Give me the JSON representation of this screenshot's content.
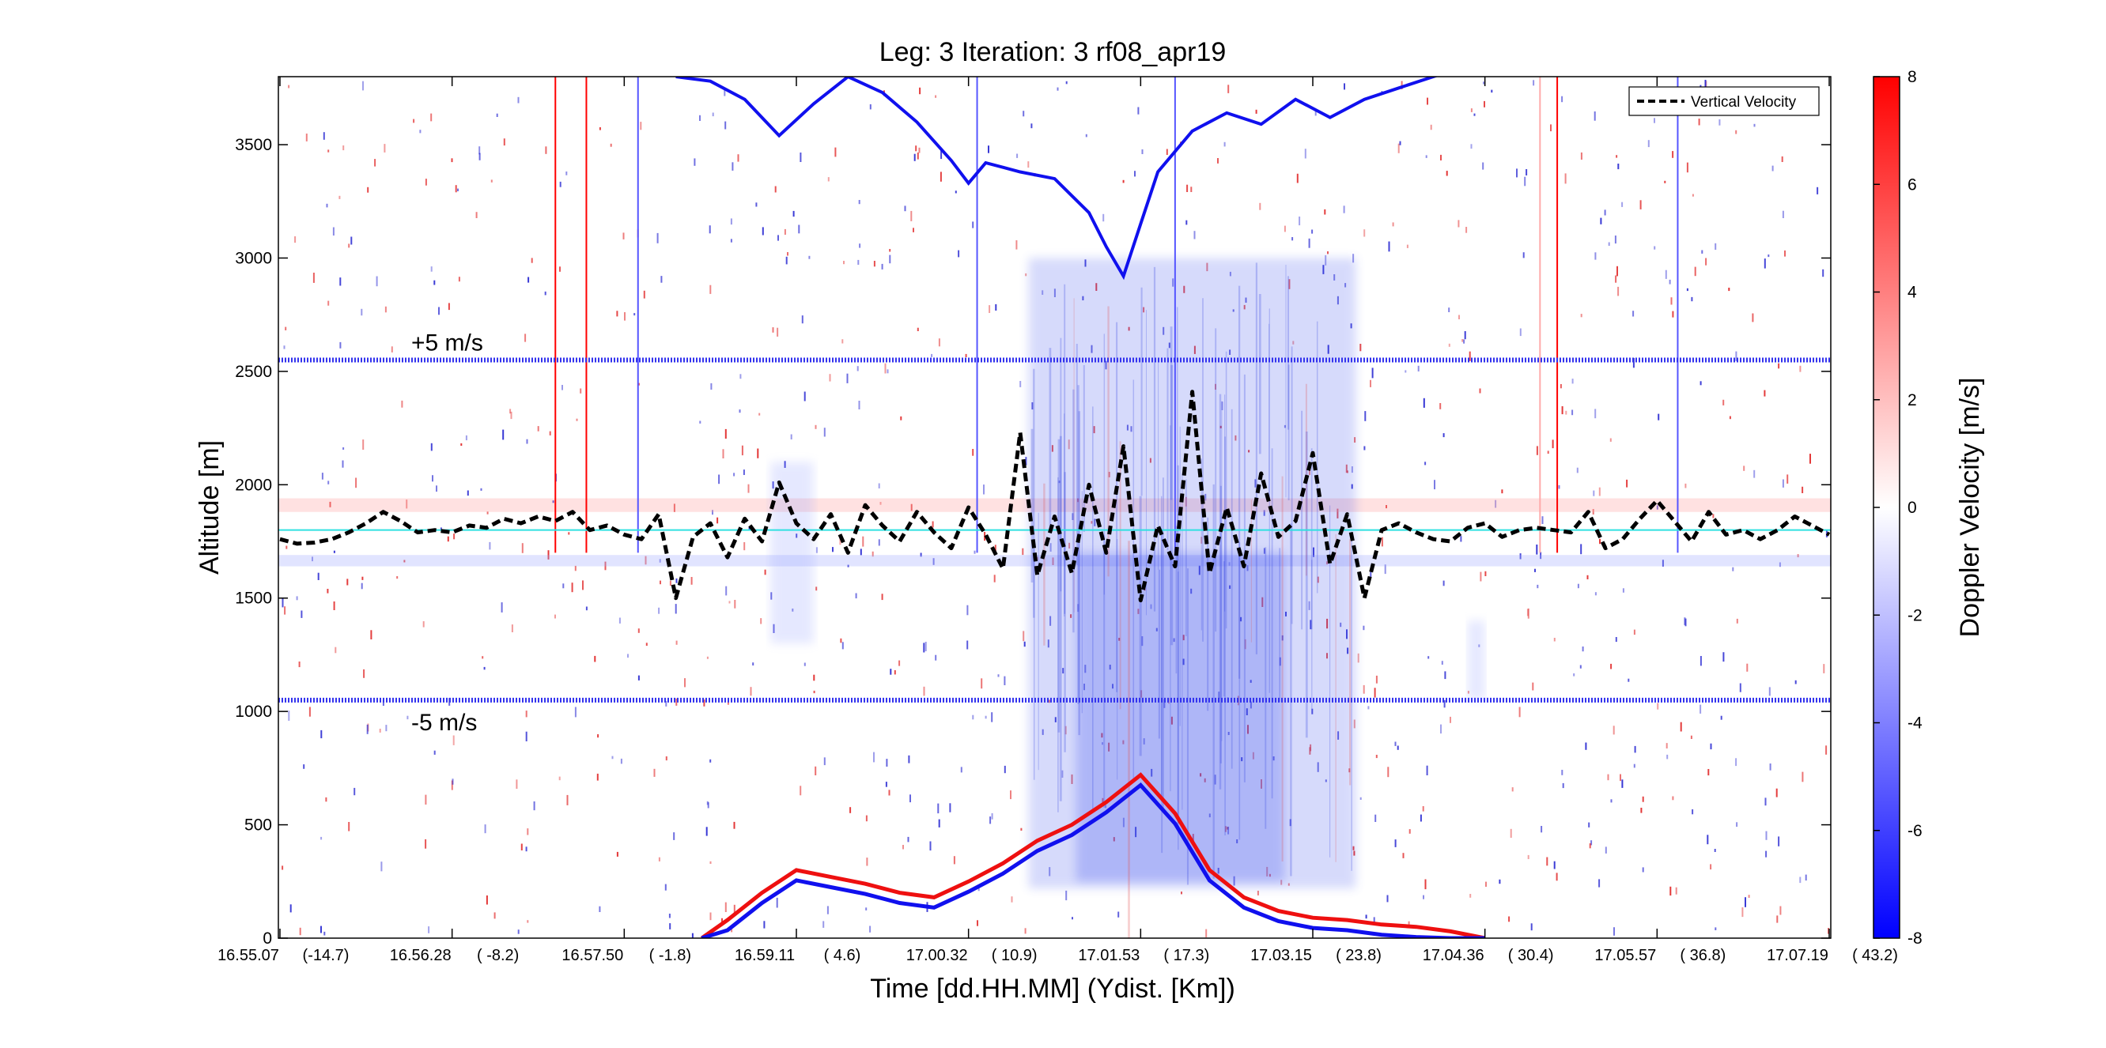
{
  "chart_data": {
    "type": "heatmap",
    "title": "Leg: 3  Iteration: 3  rf08_apr19",
    "xlabel": "Time [dd.HH.MM]    (Ydist. [Km])",
    "ylabel": "Altitude [m]",
    "colorbar_label": "Doppler Velocity [m/s]",
    "colorbar_ticks": [
      "8",
      "6",
      "4",
      "2",
      "0",
      "-2",
      "-4",
      "-6",
      "-8"
    ],
    "colorbar_range": [
      -8,
      8
    ],
    "colormap": {
      "low": "#0000ff",
      "mid": "#ffffff",
      "high": "#ff0000"
    },
    "ylim": [
      0,
      3800
    ],
    "y_ticks": [
      "0",
      "500",
      "1000",
      "1500",
      "2000",
      "2500",
      "3000",
      "3500"
    ],
    "x_ticks": [
      {
        "time": "16.55.07",
        "ydist": "(-14.7)"
      },
      {
        "time": "16.56.28",
        "ydist": "( -8.2)"
      },
      {
        "time": "16.57.50",
        "ydist": "( -1.8)"
      },
      {
        "time": "16.59.11",
        "ydist": "(  4.6)"
      },
      {
        "time": "17.00.32",
        "ydist": "( 10.9)"
      },
      {
        "time": "17.01.53",
        "ydist": "( 17.3)"
      },
      {
        "time": "17.03.15",
        "ydist": "( 23.8)"
      },
      {
        "time": "17.04.36",
        "ydist": "( 30.4)"
      },
      {
        "time": "17.05.57",
        "ydist": "( 36.8)"
      },
      {
        "time": "17.07.19",
        "ydist": "( 43.2)"
      }
    ],
    "legend": {
      "label": "Vertical Velocity",
      "placement": "top-right"
    },
    "reference_lines": [
      {
        "label": "+5 m/s",
        "altitude": 2550,
        "color": "#3333ee"
      },
      {
        "label": "-5 m/s",
        "altitude": 1050,
        "color": "#3333ee"
      }
    ],
    "aircraft_level_altitude": 1800,
    "aircraft_level_color": "#30e0e0",
    "vertical_velocity_baseline_altitude": 1800,
    "series": [
      {
        "name": "Vertical Velocity",
        "style": "dashed",
        "color": "#000000",
        "x": [
          0.0,
          0.1,
          0.2,
          0.3,
          0.4,
          0.5,
          0.6,
          0.7,
          0.8,
          0.9,
          1.0,
          1.1,
          1.2,
          1.3,
          1.4,
          1.5,
          1.6,
          1.7,
          1.8,
          1.9,
          2.0,
          2.1,
          2.2,
          2.3,
          2.4,
          2.5,
          2.6,
          2.7,
          2.8,
          2.9,
          3.0,
          3.1,
          3.2,
          3.3,
          3.4,
          3.5,
          3.6,
          3.7,
          3.8,
          3.9,
          4.0,
          4.1,
          4.2,
          4.3,
          4.4,
          4.5,
          4.6,
          4.7,
          4.8,
          4.9,
          5.0,
          5.1,
          5.2,
          5.3,
          5.4,
          5.5,
          5.6,
          5.7,
          5.8,
          5.9,
          6.0,
          6.1,
          6.2,
          6.3,
          6.4,
          6.5,
          6.6,
          6.7,
          6.8,
          6.9,
          7.0,
          7.1,
          7.2,
          7.3,
          7.4,
          7.5,
          7.6,
          7.7,
          7.8,
          7.9,
          8.0,
          8.1,
          8.2,
          8.3,
          8.4,
          8.5,
          8.6,
          8.7,
          8.8,
          8.9,
          9.0
        ],
        "y": [
          1760,
          1740,
          1745,
          1760,
          1790,
          1830,
          1880,
          1840,
          1790,
          1800,
          1790,
          1820,
          1810,
          1850,
          1830,
          1860,
          1840,
          1880,
          1800,
          1820,
          1780,
          1760,
          1870,
          1500,
          1770,
          1830,
          1680,
          1850,
          1750,
          2010,
          1830,
          1760,
          1870,
          1700,
          1910,
          1820,
          1750,
          1880,
          1790,
          1720,
          1900,
          1780,
          1630,
          2230,
          1600,
          1860,
          1610,
          2000,
          1700,
          2170,
          1490,
          1820,
          1640,
          2410,
          1610,
          1900,
          1640,
          2050,
          1770,
          1840,
          2140,
          1650,
          1870,
          1500,
          1800,
          1830,
          1790,
          1760,
          1750,
          1810,
          1830,
          1770,
          1800,
          1810,
          1800,
          1790,
          1880,
          1720,
          1760,
          1850,
          1930,
          1840,
          1750,
          1880,
          1780,
          1800,
          1760,
          1800,
          1860,
          1820,
          1780
        ]
      }
    ],
    "colored_verticals": [
      {
        "x": 1.6,
        "color": "#ff0000"
      },
      {
        "x": 1.78,
        "color": "#ff0000"
      },
      {
        "x": 2.08,
        "color": "#5555ff"
      },
      {
        "x": 4.05,
        "color": "#5555ff"
      },
      {
        "x": 5.2,
        "color": "#5555ff"
      },
      {
        "x": 7.32,
        "color": "#ffaaaa"
      },
      {
        "x": 7.42,
        "color": "#ff0000"
      },
      {
        "x": 8.12,
        "color": "#5555ff"
      }
    ],
    "upper_echo_trace": {
      "x": [
        2.3,
        2.5,
        2.7,
        2.9,
        3.1,
        3.3,
        3.5,
        3.7,
        3.9,
        4.0,
        4.1,
        4.3,
        4.5,
        4.7,
        4.8,
        4.9,
        5.0,
        5.1,
        5.3,
        5.5,
        5.7,
        5.9,
        6.1,
        6.3,
        6.5,
        6.7,
        6.9
      ],
      "y": [
        3800,
        3780,
        3700,
        3540,
        3680,
        3800,
        3730,
        3600,
        3430,
        3330,
        3420,
        3380,
        3350,
        3200,
        3050,
        2920,
        3150,
        3380,
        3560,
        3640,
        3590,
        3700,
        3620,
        3700,
        3750,
        3800,
        3850
      ]
    },
    "surface_echo_trace": {
      "x": [
        2.45,
        2.6,
        2.8,
        3.0,
        3.2,
        3.4,
        3.6,
        3.8,
        4.0,
        4.2,
        4.4,
        4.6,
        4.8,
        5.0,
        5.2,
        5.4,
        5.6,
        5.8,
        6.0,
        6.2,
        6.4,
        6.6,
        6.8,
        7.0
      ],
      "y": [
        0,
        80,
        200,
        300,
        270,
        240,
        200,
        180,
        250,
        330,
        430,
        500,
        600,
        720,
        550,
        300,
        180,
        120,
        90,
        80,
        60,
        50,
        30,
        0
      ]
    },
    "cloud_regions": [
      {
        "x_start": 4.35,
        "x_end": 6.25,
        "y_bottom": 220,
        "y_top": 3000,
        "color": "#4a5cf0"
      },
      {
        "x_start": 2.85,
        "x_end": 3.1,
        "y_bottom": 1300,
        "y_top": 2100,
        "color": "#9aa6ff"
      },
      {
        "x_start": 6.9,
        "x_end": 7.0,
        "y_bottom": 1050,
        "y_top": 1400,
        "color": "#9aa6ff"
      }
    ],
    "noise_band_upper": {
      "y_bottom": 1880,
      "y_top": 1940,
      "color": "#ff9a9a"
    },
    "noise_band_lower": {
      "y_bottom": 1640,
      "y_top": 1690,
      "color": "#9aa6ff"
    }
  }
}
